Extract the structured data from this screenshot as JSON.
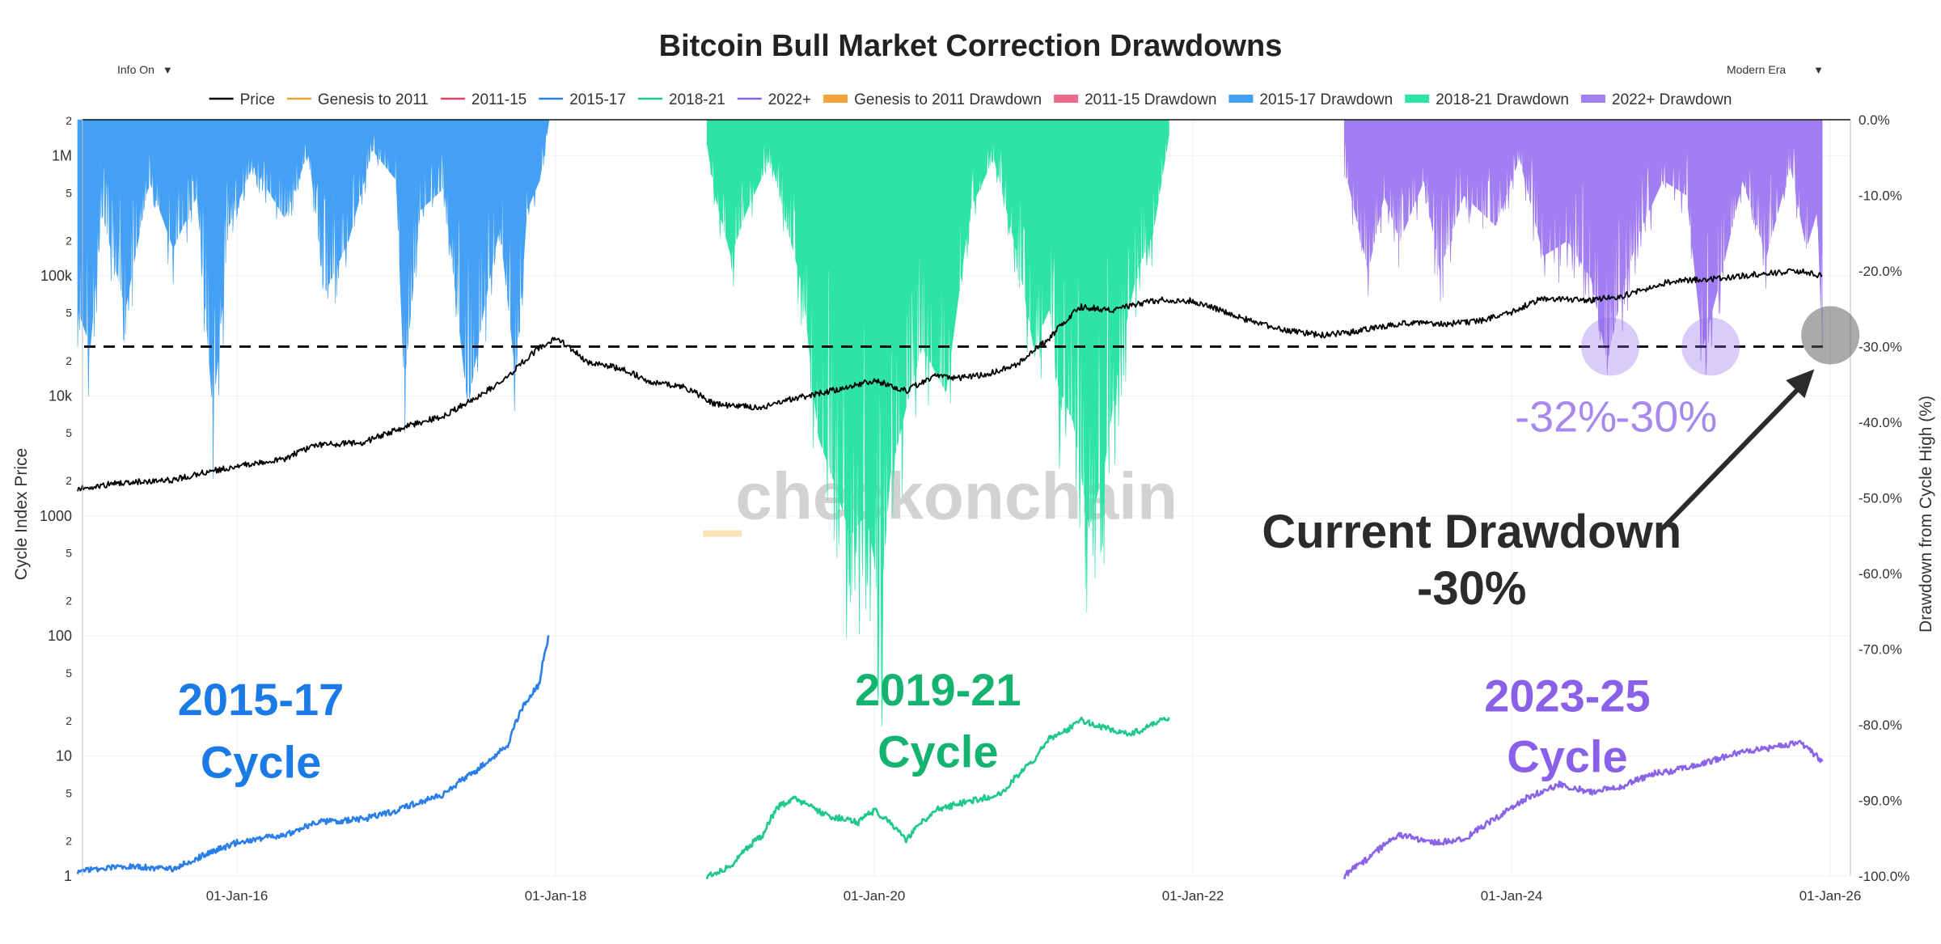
{
  "controls": {
    "info_toggle": "Info On",
    "era_select": "Modern Era",
    "dropdown_arrow": "▼"
  },
  "colors": {
    "price": "#000000",
    "c2011": "#f0a030",
    "c2015": "#e8406a",
    "c1517": "#2a7ee8",
    "c1821": "#1ec98a",
    "c2022": "#8a63e8",
    "dd1517": "#44a0f5",
    "dd1821": "#2ee3a6",
    "dd2022": "#a17ef2",
    "dd2011": "#f5a33c",
    "dd2015": "#ee6a8c",
    "label1517": "#1a7ae6",
    "label1921": "#14b370",
    "label2325": "#8a60e8",
    "watermark": "#d2d2d2",
    "watermark_dash": "#fbe3b8"
  },
  "chart_data": {
    "type": "line",
    "title": "Bitcoin Bull Market Correction Drawdowns",
    "legend": [
      {
        "name": "Price",
        "color": "#000000",
        "kind": "line"
      },
      {
        "name": "Genesis to 2011",
        "color": "#f0a030",
        "kind": "line"
      },
      {
        "name": "2011-15",
        "color": "#e8406a",
        "kind": "line"
      },
      {
        "name": "2015-17",
        "color": "#2a7ee8",
        "kind": "line"
      },
      {
        "name": "2018-21",
        "color": "#1ec98a",
        "kind": "line"
      },
      {
        "name": "2022+",
        "color": "#8a63e8",
        "kind": "line"
      },
      {
        "name": "Genesis to 2011 Drawdown",
        "color": "#f5a33c",
        "kind": "bar"
      },
      {
        "name": "2011-15 Drawdown",
        "color": "#ee6a8c",
        "kind": "bar"
      },
      {
        "name": "2015-17 Drawdown",
        "color": "#44a0f5",
        "kind": "bar"
      },
      {
        "name": "2018-21 Drawdown",
        "color": "#2ee3a6",
        "kind": "bar"
      },
      {
        "name": "2022+ Drawdown",
        "color": "#a17ef2",
        "kind": "bar"
      }
    ],
    "x_axis": {
      "ticks": [
        "01-Jan-16",
        "01-Jan-18",
        "01-Jan-20",
        "01-Jan-22",
        "01-Jan-24",
        "01-Jan-26"
      ],
      "tick_years": [
        2016,
        2018,
        2020,
        2022,
        2024,
        2026
      ],
      "range": [
        2015.0,
        2026.2
      ]
    },
    "y_left": {
      "label": "Cycle Index Price",
      "scale": "log",
      "range": [
        1,
        2000000
      ],
      "ticks": [
        {
          "v": 1,
          "t": "1"
        },
        {
          "v": 2,
          "t": "2"
        },
        {
          "v": 5,
          "t": "5"
        },
        {
          "v": 10,
          "t": "10"
        },
        {
          "v": 20,
          "t": "2"
        },
        {
          "v": 50,
          "t": "5"
        },
        {
          "v": 100,
          "t": "100"
        },
        {
          "v": 200,
          "t": "2"
        },
        {
          "v": 500,
          "t": "5"
        },
        {
          "v": 1000,
          "t": "1000"
        },
        {
          "v": 2000,
          "t": "2"
        },
        {
          "v": 5000,
          "t": "5"
        },
        {
          "v": 10000,
          "t": "10k"
        },
        {
          "v": 20000,
          "t": "2"
        },
        {
          "v": 50000,
          "t": "5"
        },
        {
          "v": 100000,
          "t": "100k"
        },
        {
          "v": 200000,
          "t": "2"
        },
        {
          "v": 500000,
          "t": "5"
        },
        {
          "v": 1000000,
          "t": "1M"
        },
        {
          "v": 2000000,
          "t": "2"
        }
      ]
    },
    "y_right": {
      "label": "Drawdown from Cycle High (%)",
      "range": [
        -100,
        0
      ],
      "ticks": [
        {
          "v": 0,
          "t": "0.0%"
        },
        {
          "v": -10,
          "t": "-10.0%"
        },
        {
          "v": -20,
          "t": "-20.0%"
        },
        {
          "v": -30,
          "t": "-30.0%"
        },
        {
          "v": -40,
          "t": "-40.0%"
        },
        {
          "v": -50,
          "t": "-50.0%"
        },
        {
          "v": -60,
          "t": "-60.0%"
        },
        {
          "v": -70,
          "t": "-70.0%"
        },
        {
          "v": -80,
          "t": "-80.0%"
        },
        {
          "v": -90,
          "t": "-90.0%"
        },
        {
          "v": -100,
          "t": "-100.0%"
        }
      ]
    },
    "reference_line": {
      "value": -30,
      "style": "dashed"
    },
    "series": [
      {
        "name": "Price",
        "color": "#000000",
        "axis": "left",
        "points": [
          [
            2015.0,
            1700
          ],
          [
            2015.3,
            1900
          ],
          [
            2015.6,
            2000
          ],
          [
            2015.8,
            2300
          ],
          [
            2016.0,
            2600
          ],
          [
            2016.3,
            3000
          ],
          [
            2016.5,
            3900
          ],
          [
            2016.8,
            4100
          ],
          [
            2017.0,
            5200
          ],
          [
            2017.3,
            6800
          ],
          [
            2017.5,
            9500
          ],
          [
            2017.7,
            14000
          ],
          [
            2017.9,
            25000
          ],
          [
            2018.0,
            30000
          ],
          [
            2018.2,
            19000
          ],
          [
            2018.4,
            17000
          ],
          [
            2018.6,
            13000
          ],
          [
            2018.8,
            12000
          ],
          [
            2019.0,
            8500
          ],
          [
            2019.3,
            8000
          ],
          [
            2019.5,
            9500
          ],
          [
            2019.8,
            11500
          ],
          [
            2020.0,
            13500
          ],
          [
            2020.2,
            11000
          ],
          [
            2020.4,
            15000
          ],
          [
            2020.5,
            14000
          ],
          [
            2020.7,
            15000
          ],
          [
            2020.9,
            18000
          ],
          [
            2021.1,
            30000
          ],
          [
            2021.3,
            55000
          ],
          [
            2021.5,
            52000
          ],
          [
            2021.7,
            60000
          ],
          [
            2021.8,
            63000
          ],
          [
            2022.0,
            62000
          ],
          [
            2022.2,
            50000
          ],
          [
            2022.4,
            40000
          ],
          [
            2022.6,
            35000
          ],
          [
            2022.8,
            32000
          ],
          [
            2023.0,
            34000
          ],
          [
            2023.3,
            40000
          ],
          [
            2023.6,
            40000
          ],
          [
            2023.8,
            42000
          ],
          [
            2024.0,
            50000
          ],
          [
            2024.2,
            65000
          ],
          [
            2024.5,
            63000
          ],
          [
            2024.7,
            68000
          ],
          [
            2025.0,
            90000
          ],
          [
            2025.3,
            95000
          ],
          [
            2025.6,
            105000
          ],
          [
            2025.8,
            110000
          ],
          [
            2025.95,
            100000
          ]
        ]
      },
      {
        "name": "2015-17",
        "color": "#2a7ee8",
        "axis": "left",
        "points": [
          [
            2015.0,
            1.1
          ],
          [
            2015.3,
            1.2
          ],
          [
            2015.6,
            1.15
          ],
          [
            2015.8,
            1.5
          ],
          [
            2016.0,
            1.9
          ],
          [
            2016.3,
            2.2
          ],
          [
            2016.5,
            2.8
          ],
          [
            2016.8,
            3.0
          ],
          [
            2017.0,
            3.5
          ],
          [
            2017.3,
            4.8
          ],
          [
            2017.5,
            7.5
          ],
          [
            2017.7,
            12
          ],
          [
            2017.9,
            40
          ],
          [
            2017.96,
            100
          ]
        ]
      },
      {
        "name": "2018-21",
        "color": "#1ec98a",
        "axis": "left",
        "points": [
          [
            2018.95,
            1.0
          ],
          [
            2019.1,
            1.2
          ],
          [
            2019.3,
            2.2
          ],
          [
            2019.4,
            3.8
          ],
          [
            2019.5,
            4.4
          ],
          [
            2019.7,
            3.2
          ],
          [
            2019.9,
            2.8
          ],
          [
            2020.0,
            3.5
          ],
          [
            2020.2,
            2.0
          ],
          [
            2020.4,
            3.6
          ],
          [
            2020.6,
            4.2
          ],
          [
            2020.8,
            4.8
          ],
          [
            2021.0,
            9
          ],
          [
            2021.1,
            14
          ],
          [
            2021.2,
            16
          ],
          [
            2021.3,
            20
          ],
          [
            2021.4,
            18
          ],
          [
            2021.6,
            15
          ],
          [
            2021.7,
            17
          ],
          [
            2021.85,
            21
          ]
        ]
      },
      {
        "name": "2022+",
        "color": "#8a63e8",
        "axis": "left",
        "points": [
          [
            2022.95,
            1.0
          ],
          [
            2023.1,
            1.4
          ],
          [
            2023.3,
            2.2
          ],
          [
            2023.5,
            1.9
          ],
          [
            2023.7,
            2.0
          ],
          [
            2023.9,
            3.0
          ],
          [
            2024.1,
            4.5
          ],
          [
            2024.3,
            5.8
          ],
          [
            2024.5,
            5.0
          ],
          [
            2024.7,
            5.6
          ],
          [
            2024.9,
            7.2
          ],
          [
            2025.0,
            7.5
          ],
          [
            2025.2,
            8.6
          ],
          [
            2025.4,
            10.5
          ],
          [
            2025.6,
            11.5
          ],
          [
            2025.8,
            13.0
          ],
          [
            2025.95,
            9.0
          ]
        ]
      }
    ],
    "drawdowns": [
      {
        "name": "2015-17 Drawdown",
        "color": "#44a0f5",
        "range": [
          2015.0,
          2017.96
        ],
        "points": [
          [
            2015.0,
            -25
          ],
          [
            2015.08,
            -30
          ],
          [
            2015.15,
            -12
          ],
          [
            2015.3,
            -25
          ],
          [
            2015.45,
            -8
          ],
          [
            2015.6,
            -17
          ],
          [
            2015.75,
            -10
          ],
          [
            2015.85,
            -39
          ],
          [
            2015.95,
            -14
          ],
          [
            2016.1,
            -6
          ],
          [
            2016.3,
            -13
          ],
          [
            2016.45,
            -4
          ],
          [
            2016.55,
            -23
          ],
          [
            2016.7,
            -16
          ],
          [
            2016.85,
            -4
          ],
          [
            2017.0,
            -8
          ],
          [
            2017.05,
            -35
          ],
          [
            2017.15,
            -12
          ],
          [
            2017.3,
            -9
          ],
          [
            2017.45,
            -38
          ],
          [
            2017.55,
            -25
          ],
          [
            2017.65,
            -14
          ],
          [
            2017.75,
            -34
          ],
          [
            2017.82,
            -12
          ],
          [
            2017.9,
            -8
          ],
          [
            2017.96,
            0
          ]
        ]
      },
      {
        "name": "2018-21 Drawdown",
        "color": "#2ee3a6",
        "range": [
          2018.95,
          2021.85
        ],
        "points": [
          [
            2018.95,
            -3
          ],
          [
            2019.0,
            -10
          ],
          [
            2019.1,
            -18
          ],
          [
            2019.2,
            -12
          ],
          [
            2019.35,
            -5
          ],
          [
            2019.45,
            -14
          ],
          [
            2019.55,
            -22
          ],
          [
            2019.65,
            -42
          ],
          [
            2019.75,
            -48
          ],
          [
            2019.85,
            -55
          ],
          [
            2019.95,
            -52
          ],
          [
            2020.0,
            -58
          ],
          [
            2020.03,
            -67
          ],
          [
            2020.1,
            -47
          ],
          [
            2020.2,
            -38
          ],
          [
            2020.3,
            -30
          ],
          [
            2020.45,
            -36
          ],
          [
            2020.6,
            -12
          ],
          [
            2020.75,
            -5
          ],
          [
            2020.9,
            -18
          ],
          [
            2021.0,
            -30
          ],
          [
            2021.1,
            -25
          ],
          [
            2021.15,
            -35
          ],
          [
            2021.25,
            -40
          ],
          [
            2021.35,
            -54
          ],
          [
            2021.45,
            -45
          ],
          [
            2021.55,
            -30
          ],
          [
            2021.65,
            -20
          ],
          [
            2021.75,
            -15
          ],
          [
            2021.85,
            -2
          ]
        ]
      },
      {
        "name": "2022+ Drawdown",
        "color": "#a17ef2",
        "range": [
          2022.95,
          2025.95
        ],
        "points": [
          [
            2022.95,
            -6
          ],
          [
            2023.1,
            -20
          ],
          [
            2023.2,
            -10
          ],
          [
            2023.3,
            -16
          ],
          [
            2023.45,
            -8
          ],
          [
            2023.55,
            -20
          ],
          [
            2023.7,
            -10
          ],
          [
            2023.9,
            -14
          ],
          [
            2024.05,
            -5
          ],
          [
            2024.2,
            -18
          ],
          [
            2024.35,
            -16
          ],
          [
            2024.5,
            -21
          ],
          [
            2024.6,
            -32
          ],
          [
            2024.7,
            -22
          ],
          [
            2024.8,
            -15
          ],
          [
            2024.95,
            -8
          ],
          [
            2025.1,
            -10
          ],
          [
            2025.2,
            -30
          ],
          [
            2025.3,
            -22
          ],
          [
            2025.45,
            -8
          ],
          [
            2025.6,
            -18
          ],
          [
            2025.75,
            -6
          ],
          [
            2025.85,
            -17
          ],
          [
            2025.92,
            -12
          ],
          [
            2025.95,
            -30
          ]
        ]
      }
    ],
    "annotations": {
      "cycle_labels": [
        {
          "line1": "2015-17",
          "line2": "Cycle",
          "color": "#1a7ae6",
          "year": 2016.15,
          "line1_value": 30,
          "line2_value": 9
        },
        {
          "line1": "2019-21",
          "line2": "Cycle",
          "color": "#14b370",
          "year": 2020.4,
          "line1_value": 36,
          "line2_value": 11
        },
        {
          "line1": "2023-25",
          "line2": "Cycle",
          "color": "#8a60e8",
          "year": 2024.35,
          "line1_value": 32,
          "line2_value": 10
        }
      ],
      "markers": [
        {
          "text": "-32%",
          "year": 2024.62,
          "dd": -30,
          "label_dd": -38,
          "color": "#8a60e8"
        },
        {
          "text": "-30%",
          "year": 2025.25,
          "dd": -30,
          "label_dd": -38,
          "color": "#8a60e8"
        }
      ],
      "current": {
        "line1": "Current Drawdown",
        "line2": "-30%",
        "year": 2025.95,
        "dd": -28.5,
        "text_year": 2023.75,
        "line1_dd": -54,
        "line2_dd": -61.5,
        "arrow_from_year": 2024.95,
        "arrow_from_dd": -54,
        "arrow_to_year": 2025.9,
        "arrow_to_dd": -33
      },
      "watermark": {
        "text": "checkonchain",
        "year": 2020.6,
        "dd": -50
      }
    }
  }
}
